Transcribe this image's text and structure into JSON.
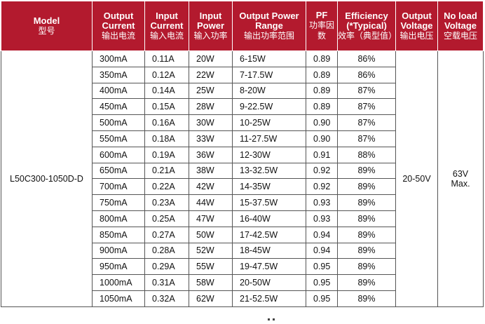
{
  "headers": [
    {
      "en": "Model",
      "cn": "型号"
    },
    {
      "en": "Output Current",
      "cn": "输出电流"
    },
    {
      "en": "Input Current",
      "cn": "输入电流"
    },
    {
      "en": "Input Power",
      "cn": "输入功率"
    },
    {
      "en": "Output Power Range",
      "cn": "输出功率范围"
    },
    {
      "en": "PF",
      "cn": "功率因数"
    },
    {
      "en": "Efficiency (*Typical)",
      "cn": "效率（典型值）"
    },
    {
      "en": "Output Voltage",
      "cn": "输出电压"
    },
    {
      "en": "No load Voltage",
      "cn": "空载电压"
    }
  ],
  "model": "L50C300-1050D-D",
  "output_voltage": "20-50V",
  "no_load_voltage": {
    "value": "63V",
    "suffix": "Max."
  },
  "rows": [
    {
      "output_current": "300mA",
      "input_current": "0.11A",
      "input_power": "20W",
      "output_power_range": "6-15W",
      "pf": "0.89",
      "efficiency": "86%"
    },
    {
      "output_current": "350mA",
      "input_current": "0.12A",
      "input_power": "22W",
      "output_power_range": "7-17.5W",
      "pf": "0.89",
      "efficiency": "86%"
    },
    {
      "output_current": "400mA",
      "input_current": "0.14A",
      "input_power": "25W",
      "output_power_range": "8-20W",
      "pf": "0.89",
      "efficiency": "87%"
    },
    {
      "output_current": "450mA",
      "input_current": "0.15A",
      "input_power": "28W",
      "output_power_range": "9-22.5W",
      "pf": "0.89",
      "efficiency": "87%"
    },
    {
      "output_current": "500mA",
      "input_current": "0.16A",
      "input_power": "30W",
      "output_power_range": "10-25W",
      "pf": "0.90",
      "efficiency": "87%"
    },
    {
      "output_current": "550mA",
      "input_current": "0.18A",
      "input_power": "33W",
      "output_power_range": "11-27.5W",
      "pf": "0.90",
      "efficiency": "87%"
    },
    {
      "output_current": "600mA",
      "input_current": "0.19A",
      "input_power": "36W",
      "output_power_range": "12-30W",
      "pf": "0.91",
      "efficiency": "88%"
    },
    {
      "output_current": "650mA",
      "input_current": "0.21A",
      "input_power": "38W",
      "output_power_range": "13-32.5W",
      "pf": "0.92",
      "efficiency": "89%"
    },
    {
      "output_current": "700mA",
      "input_current": "0.22A",
      "input_power": "42W",
      "output_power_range": "14-35W",
      "pf": "0.92",
      "efficiency": "89%"
    },
    {
      "output_current": "750mA",
      "input_current": "0.23A",
      "input_power": "44W",
      "output_power_range": "15-37.5W",
      "pf": "0.93",
      "efficiency": "89%"
    },
    {
      "output_current": "800mA",
      "input_current": "0.25A",
      "input_power": "47W",
      "output_power_range": "16-40W",
      "pf": "0.93",
      "efficiency": "89%"
    },
    {
      "output_current": "850mA",
      "input_current": "0.27A",
      "input_power": "50W",
      "output_power_range": "17-42.5W",
      "pf": "0.94",
      "efficiency": "89%"
    },
    {
      "output_current": "900mA",
      "input_current": "0.28A",
      "input_power": "52W",
      "output_power_range": "18-45W",
      "pf": "0.94",
      "efficiency": "89%"
    },
    {
      "output_current": "950mA",
      "input_current": "0.29A",
      "input_power": "55W",
      "output_power_range": "19-47.5W",
      "pf": "0.95",
      "efficiency": "89%"
    },
    {
      "output_current": "1000mA",
      "input_current": "0.31A",
      "input_power": "58W",
      "output_power_range": "20-50W",
      "pf": "0.95",
      "efficiency": "89%"
    },
    {
      "output_current": "1050mA",
      "input_current": "0.32A",
      "input_power": "62W",
      "output_power_range": "21-52.5W",
      "pf": "0.95",
      "efficiency": "89%"
    }
  ]
}
